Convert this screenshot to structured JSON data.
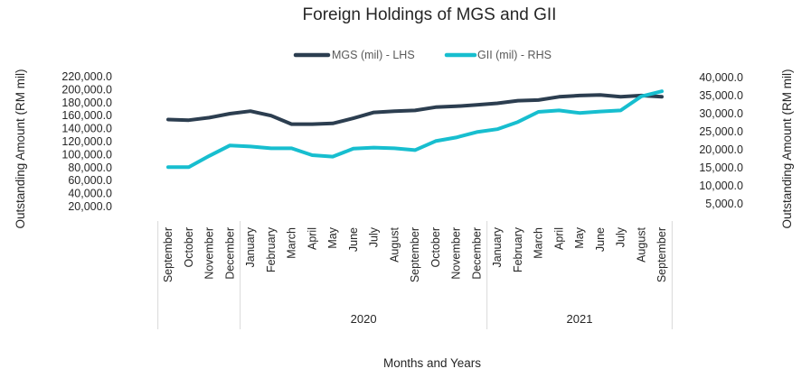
{
  "chart_data": {
    "type": "line",
    "title": "Foreign Holdings of MGS and GII",
    "xlabel": "Months and Years",
    "ylabel_left": "Outstanding Amount (RM mil)",
    "ylabel_right": "Outstanding Amount (RM mil)",
    "legend_position": "top-center",
    "grid": false,
    "categories": [
      "September",
      "October",
      "November",
      "December",
      "January",
      "February",
      "March",
      "April",
      "May",
      "June",
      "July",
      "August",
      "September",
      "October",
      "November",
      "December",
      "January",
      "February",
      "March",
      "April",
      "May",
      "June",
      "July",
      "August",
      "September"
    ],
    "year_groups": [
      {
        "label": "",
        "start": 0,
        "end": 3
      },
      {
        "label": "2020",
        "start": 4,
        "end": 15
      },
      {
        "label": "2021",
        "start": 16,
        "end": 24
      }
    ],
    "y_left": {
      "ticks": [
        "20,000.0",
        "40,000.0",
        "60,000.0",
        "80,000.0",
        "100,000.0",
        "120,000.0",
        "140,000.0",
        "160,000.0",
        "180,000.0",
        "200,000.0",
        "220,000.0"
      ],
      "min": 20000,
      "max": 220000
    },
    "y_right": {
      "ticks": [
        "5,000.0",
        "10,000.0",
        "15,000.0",
        "20,000.0",
        "25,000.0",
        "30,000.0",
        "35,000.0",
        "40,000.0"
      ],
      "min": 5000,
      "max": 40000
    },
    "series": [
      {
        "name": "MGS (mil) - LHS",
        "axis": "left",
        "color": "#2c3e50",
        "values": [
          154000,
          153000,
          157000,
          163000,
          167000,
          160000,
          147000,
          147000,
          148000,
          156000,
          165000,
          167000,
          168000,
          173000,
          174500,
          176500,
          179000,
          183000,
          184000,
          189000,
          191000,
          192000,
          189000,
          191000,
          189000
        ]
      },
      {
        "name": "GII (mil) - RHS",
        "axis": "right",
        "color": "#17becf",
        "values": [
          15200,
          15200,
          18300,
          21200,
          20900,
          20400,
          20400,
          18500,
          18100,
          20300,
          20600,
          20400,
          19900,
          22400,
          23400,
          24900,
          25700,
          27700,
          30500,
          30900,
          30200,
          30600,
          30900,
          34800,
          36200
        ]
      }
    ]
  }
}
